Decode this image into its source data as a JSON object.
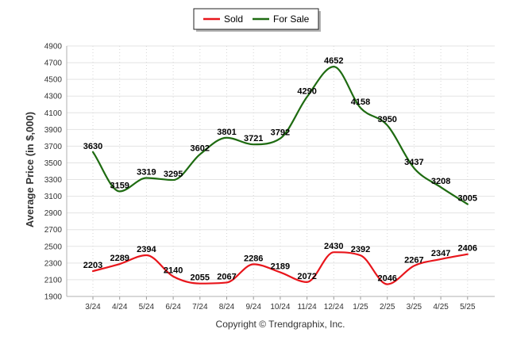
{
  "chart_data": {
    "type": "line",
    "categories": [
      "3/24",
      "4/24",
      "5/24",
      "6/24",
      "7/24",
      "8/24",
      "9/24",
      "10/24",
      "11/24",
      "12/24",
      "1/25",
      "2/25",
      "3/25",
      "4/25",
      "5/25"
    ],
    "series": [
      {
        "name": "Sold",
        "color": "#e8151b",
        "values": [
          2203,
          2289,
          2394,
          2140,
          2055,
          2067,
          2286,
          2189,
          2072,
          2430,
          2392,
          2046,
          2267,
          2347,
          2406
        ]
      },
      {
        "name": "For Sale",
        "color": "#1e6b11",
        "values": [
          3630,
          3159,
          3319,
          3295,
          3602,
          3801,
          3721,
          3792,
          4290,
          4652,
          4158,
          3950,
          3437,
          3208,
          3005
        ]
      }
    ],
    "ylabel": "Average Price (in $,000)",
    "xlabel": "",
    "ylim": [
      1900,
      4900
    ],
    "yticks": [
      1900,
      2100,
      2300,
      2500,
      2700,
      2900,
      3100,
      3300,
      3500,
      3700,
      3900,
      4100,
      4300,
      4500,
      4700,
      4900
    ],
    "grid": true,
    "legend_position": "top-center"
  },
  "footer": {
    "copyright": "Copyright © Trendgraphix, Inc."
  }
}
